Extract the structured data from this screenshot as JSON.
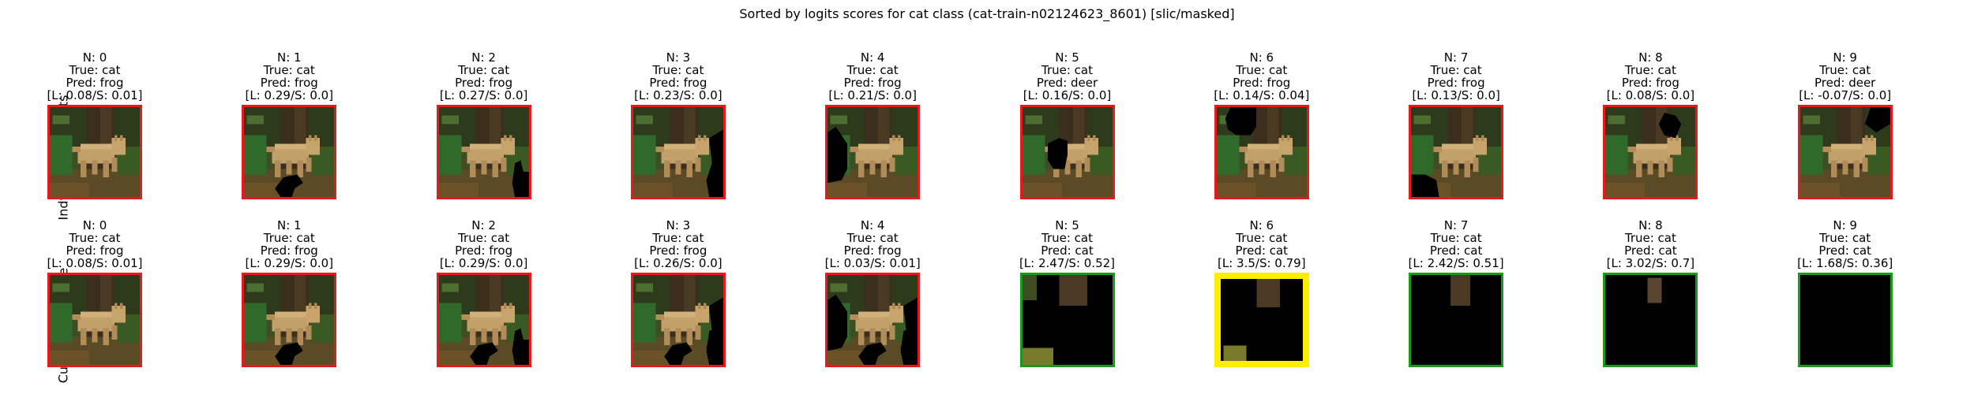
{
  "title": "Sorted by logits scores for cat class (cat-train-n02124623_8601) [slic/masked]",
  "colors": {
    "red": "#e8191c",
    "green": "#1a9a1a",
    "yellow": "#ffee00"
  },
  "rows": [
    {
      "label": "Indvidual Segments",
      "panels": [
        {
          "n": "N: 0",
          "true_label": "True: cat",
          "pred": "Pred: frog",
          "score": "[L: 0.08/S: 0.01]",
          "border": "red",
          "mask": []
        },
        {
          "n": "N: 1",
          "true_label": "True: cat",
          "pred": "Pred: frog",
          "score": "[L: 0.29/S: 0.0]",
          "border": "red",
          "mask": [
            "s1"
          ]
        },
        {
          "n": "N: 2",
          "true_label": "True: cat",
          "pred": "Pred: frog",
          "score": "[L: 0.27/S: 0.0]",
          "border": "red",
          "mask": [
            "s2"
          ]
        },
        {
          "n": "N: 3",
          "true_label": "True: cat",
          "pred": "Pred: frog",
          "score": "[L: 0.23/S: 0.0]",
          "border": "red",
          "mask": [
            "s3"
          ]
        },
        {
          "n": "N: 4",
          "true_label": "True: cat",
          "pred": "Pred: frog",
          "score": "[L: 0.21/S: 0.0]",
          "border": "red",
          "mask": [
            "s4"
          ]
        },
        {
          "n": "N: 5",
          "true_label": "True: cat",
          "pred": "Pred: deer",
          "score": "[L: 0.16/S: 0.0]",
          "border": "red",
          "mask": [
            "s5"
          ]
        },
        {
          "n": "N: 6",
          "true_label": "True: cat",
          "pred": "Pred: frog",
          "score": "[L: 0.14/S: 0.04]",
          "border": "red",
          "mask": [
            "s6"
          ]
        },
        {
          "n": "N: 7",
          "true_label": "True: cat",
          "pred": "Pred: frog",
          "score": "[L: 0.13/S: 0.0]",
          "border": "red",
          "mask": [
            "s7"
          ]
        },
        {
          "n": "N: 8",
          "true_label": "True: cat",
          "pred": "Pred: frog",
          "score": "[L: 0.08/S: 0.0]",
          "border": "red",
          "mask": [
            "s8"
          ]
        },
        {
          "n": "N: 9",
          "true_label": "True: cat",
          "pred": "Pred: deer",
          "score": "[L: -0.07/S: 0.0]",
          "border": "red",
          "mask": [
            "s9"
          ]
        }
      ]
    },
    {
      "label": "Cumulative Image",
      "panels": [
        {
          "n": "N: 0",
          "true_label": "True: cat",
          "pred": "Pred: frog",
          "score": "[L: 0.08/S: 0.01]",
          "border": "red",
          "mask": []
        },
        {
          "n": "N: 1",
          "true_label": "True: cat",
          "pred": "Pred: frog",
          "score": "[L: 0.29/S: 0.0]",
          "border": "red",
          "mask": [
            "s1"
          ]
        },
        {
          "n": "N: 2",
          "true_label": "True: cat",
          "pred": "Pred: frog",
          "score": "[L: 0.29/S: 0.0]",
          "border": "red",
          "mask": [
            "s1",
            "s2"
          ]
        },
        {
          "n": "N: 3",
          "true_label": "True: cat",
          "pred": "Pred: frog",
          "score": "[L: 0.26/S: 0.0]",
          "border": "red",
          "mask": [
            "s1",
            "s2",
            "s3"
          ]
        },
        {
          "n": "N: 4",
          "true_label": "True: cat",
          "pred": "Pred: frog",
          "score": "[L: 0.03/S: 0.01]",
          "border": "red",
          "mask": [
            "s1",
            "s2",
            "s3",
            "s4"
          ]
        },
        {
          "n": "N: 5",
          "true_label": "True: cat",
          "pred": "Pred: cat",
          "score": "[L: 2.47/S: 0.52]",
          "border": "green",
          "mask": [
            "s1",
            "s2",
            "s3",
            "s4",
            "s5"
          ]
        },
        {
          "n": "N: 6",
          "true_label": "True: cat",
          "pred": "Pred: cat",
          "score": "[L: 3.5/S: 0.79]",
          "border": "yellow",
          "mask": [
            "s1",
            "s2",
            "s3",
            "s4",
            "s5",
            "s6"
          ]
        },
        {
          "n": "N: 7",
          "true_label": "True: cat",
          "pred": "Pred: cat",
          "score": "[L: 2.42/S: 0.51]",
          "border": "green",
          "mask": [
            "s1",
            "s2",
            "s3",
            "s4",
            "s5",
            "s6",
            "s7"
          ]
        },
        {
          "n": "N: 8",
          "true_label": "True: cat",
          "pred": "Pred: cat",
          "score": "[L: 3.02/S: 0.7]",
          "border": "green",
          "mask": [
            "s1",
            "s2",
            "s3",
            "s4",
            "s5",
            "s6",
            "s7",
            "s8"
          ]
        },
        {
          "n": "N: 9",
          "true_label": "True: cat",
          "pred": "Pred: cat",
          "score": "[L: 1.68/S: 0.36]",
          "border": "green",
          "mask": [
            "all"
          ]
        }
      ]
    }
  ]
}
